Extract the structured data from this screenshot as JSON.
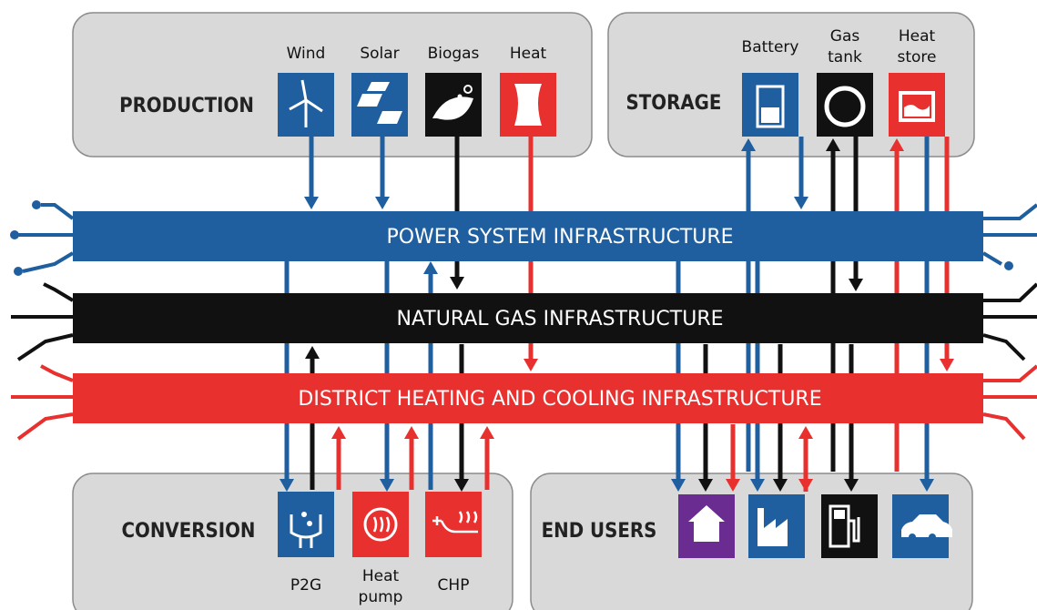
{
  "production": {
    "title": "PRODUCTION",
    "items": [
      {
        "lines": [
          "Wind"
        ]
      },
      {
        "lines": [
          "Solar"
        ]
      },
      {
        "lines": [
          "Biogas"
        ]
      },
      {
        "lines": [
          "Heat"
        ]
      }
    ]
  },
  "storage": {
    "title": "STORAGE",
    "items": [
      {
        "lines": [
          "Battery"
        ]
      },
      {
        "lines": [
          "Gas",
          "tank"
        ]
      },
      {
        "lines": [
          "Heat",
          "store"
        ]
      }
    ]
  },
  "infrastructure": [
    "POWER SYSTEM INFRASTRUCTURE",
    "NATURAL GAS INFRASTRUCTURE",
    "DISTRICT HEATING AND COOLING INFRASTRUCTURE"
  ],
  "conversion": {
    "title": "CONVERSION",
    "items": [
      {
        "lines": [
          "P2G"
        ]
      },
      {
        "lines": [
          "Heat",
          "pump"
        ]
      },
      {
        "lines": [
          "CHP"
        ]
      }
    ]
  },
  "end_users": {
    "title": "END USERS"
  }
}
